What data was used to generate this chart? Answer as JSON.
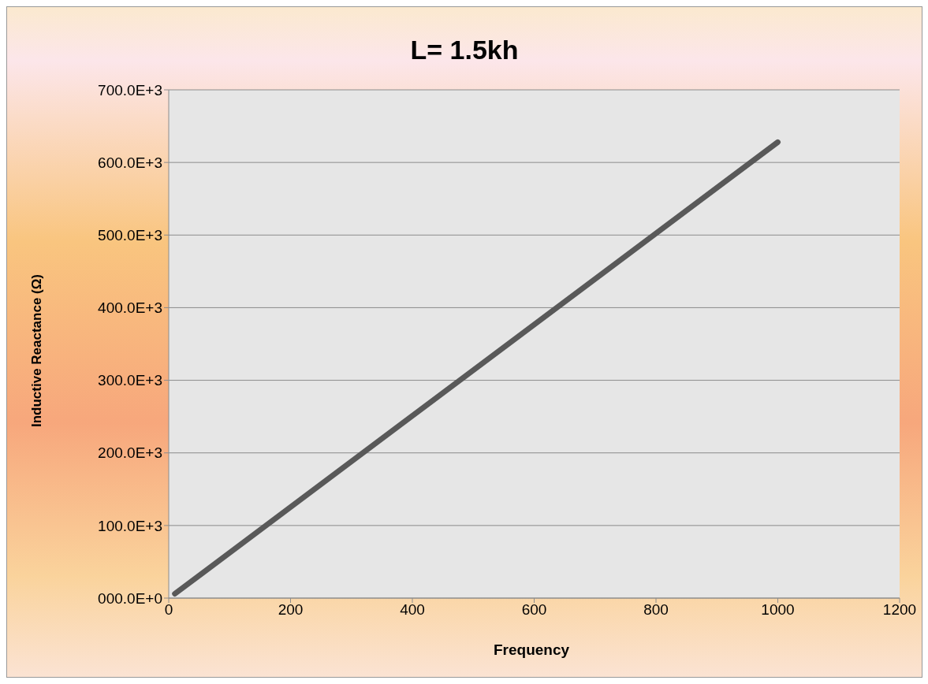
{
  "chart_data": {
    "type": "line",
    "title": "L= 1.5kh",
    "xlabel": "Frequency",
    "ylabel": "Inductive Reactance (Ω)",
    "x": [
      10,
      1000
    ],
    "series": [
      {
        "color": "#595959",
        "values": [
          6000,
          628000
        ]
      }
    ],
    "xlim": [
      0,
      1200
    ],
    "xticks": [
      0,
      200,
      400,
      600,
      800,
      1000,
      1200
    ],
    "ylim": [
      0,
      700000
    ],
    "yticks": [
      {
        "value": 0,
        "label": "000.0E+0"
      },
      {
        "value": 100000,
        "label": "100.0E+3"
      },
      {
        "value": 200000,
        "label": "200.0E+3"
      },
      {
        "value": 300000,
        "label": "300.0E+3"
      },
      {
        "value": 400000,
        "label": "400.0E+3"
      },
      {
        "value": 500000,
        "label": "500.0E+3"
      },
      {
        "value": 600000,
        "label": "600.0E+3"
      },
      {
        "value": 700000,
        "label": "700.0E+3"
      }
    ],
    "grid": "y",
    "marker": "none",
    "line_style": "solid"
  }
}
